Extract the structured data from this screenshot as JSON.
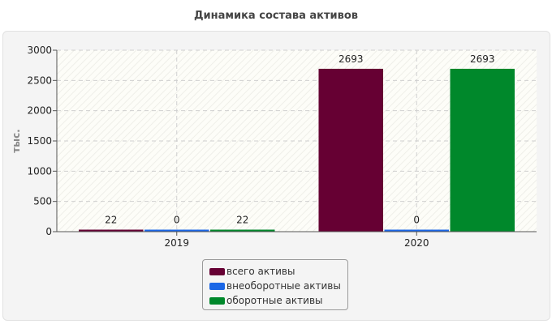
{
  "chart_data": {
    "type": "bar",
    "title": "Динамика состава активов",
    "ylabel": "тыс.",
    "xlabel": "",
    "categories": [
      "2019",
      "2020"
    ],
    "ylim": [
      0,
      3000
    ],
    "yticks": [
      0,
      500,
      1000,
      1500,
      2000,
      2500,
      3000
    ],
    "grid": true,
    "legend_position": "bottom",
    "series": [
      {
        "name": "всего активы",
        "values": [
          22,
          2693
        ],
        "labels": [
          "22",
          "2693"
        ],
        "color": "#660033"
      },
      {
        "name": "внеоборотные активы",
        "values": [
          0,
          0
        ],
        "labels": [
          "0",
          "0"
        ],
        "color": "#1a66e6"
      },
      {
        "name": "оборотные активы",
        "values": [
          22,
          2693
        ],
        "labels": [
          "22",
          "2693"
        ],
        "color": "#00882b"
      }
    ]
  }
}
